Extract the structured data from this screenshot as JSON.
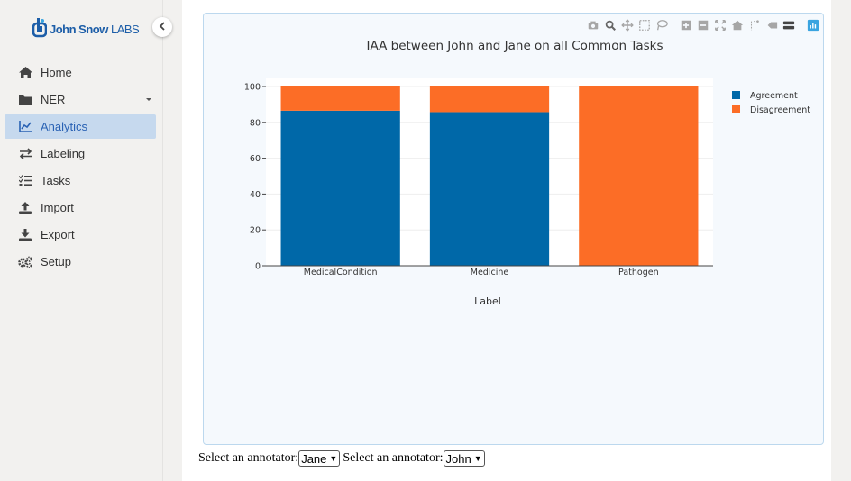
{
  "brand": {
    "name_bold": "John Snow",
    "name_light": "LABS",
    "color": "#1d5ea8"
  },
  "sidebar": {
    "items": [
      {
        "label": "Home",
        "icon": "home-icon"
      },
      {
        "label": "NER",
        "icon": "folder-icon",
        "has_caret": true
      },
      {
        "label": "Analytics",
        "icon": "chart-line-icon",
        "active": true
      },
      {
        "label": "Labeling",
        "icon": "exchange-icon"
      },
      {
        "label": "Tasks",
        "icon": "list-icon"
      },
      {
        "label": "Import",
        "icon": "upload-icon"
      },
      {
        "label": "Export",
        "icon": "download-icon"
      },
      {
        "label": "Setup",
        "icon": "gears-icon"
      }
    ]
  },
  "modebar": [
    "camera-icon",
    "zoom-icon",
    "pan-icon",
    "box-select-icon",
    "lasso-icon",
    "zoom-in-icon",
    "zoom-out-icon",
    "autoscale-icon",
    "reset-axes-icon",
    "spike-lines-icon",
    "hover-closest-icon",
    "hover-compare-icon",
    "plotly-logo-icon"
  ],
  "chart_data": {
    "type": "bar",
    "barmode": "stack",
    "title": "IAA between John and Jane on all Common Tasks",
    "xlabel": "Label",
    "ylabel": "",
    "categories": [
      "MedicalCondition",
      "Medicine",
      "Pathogen"
    ],
    "series": [
      {
        "name": "Agreement",
        "color": "#0068a8",
        "values": [
          86.5,
          85.7,
          0
        ]
      },
      {
        "name": "Disagreement",
        "color": "#fc6d26",
        "values": [
          13.5,
          14.3,
          100
        ]
      }
    ],
    "ylim": [
      0,
      100
    ],
    "yticks": [
      0,
      20,
      40,
      60,
      80,
      100
    ],
    "grid": true,
    "legend_position": "top-right"
  },
  "footer": {
    "label1": "Select an annotator:",
    "value1": "Jane",
    "label2": "Select an annotator:",
    "value2": "John"
  }
}
